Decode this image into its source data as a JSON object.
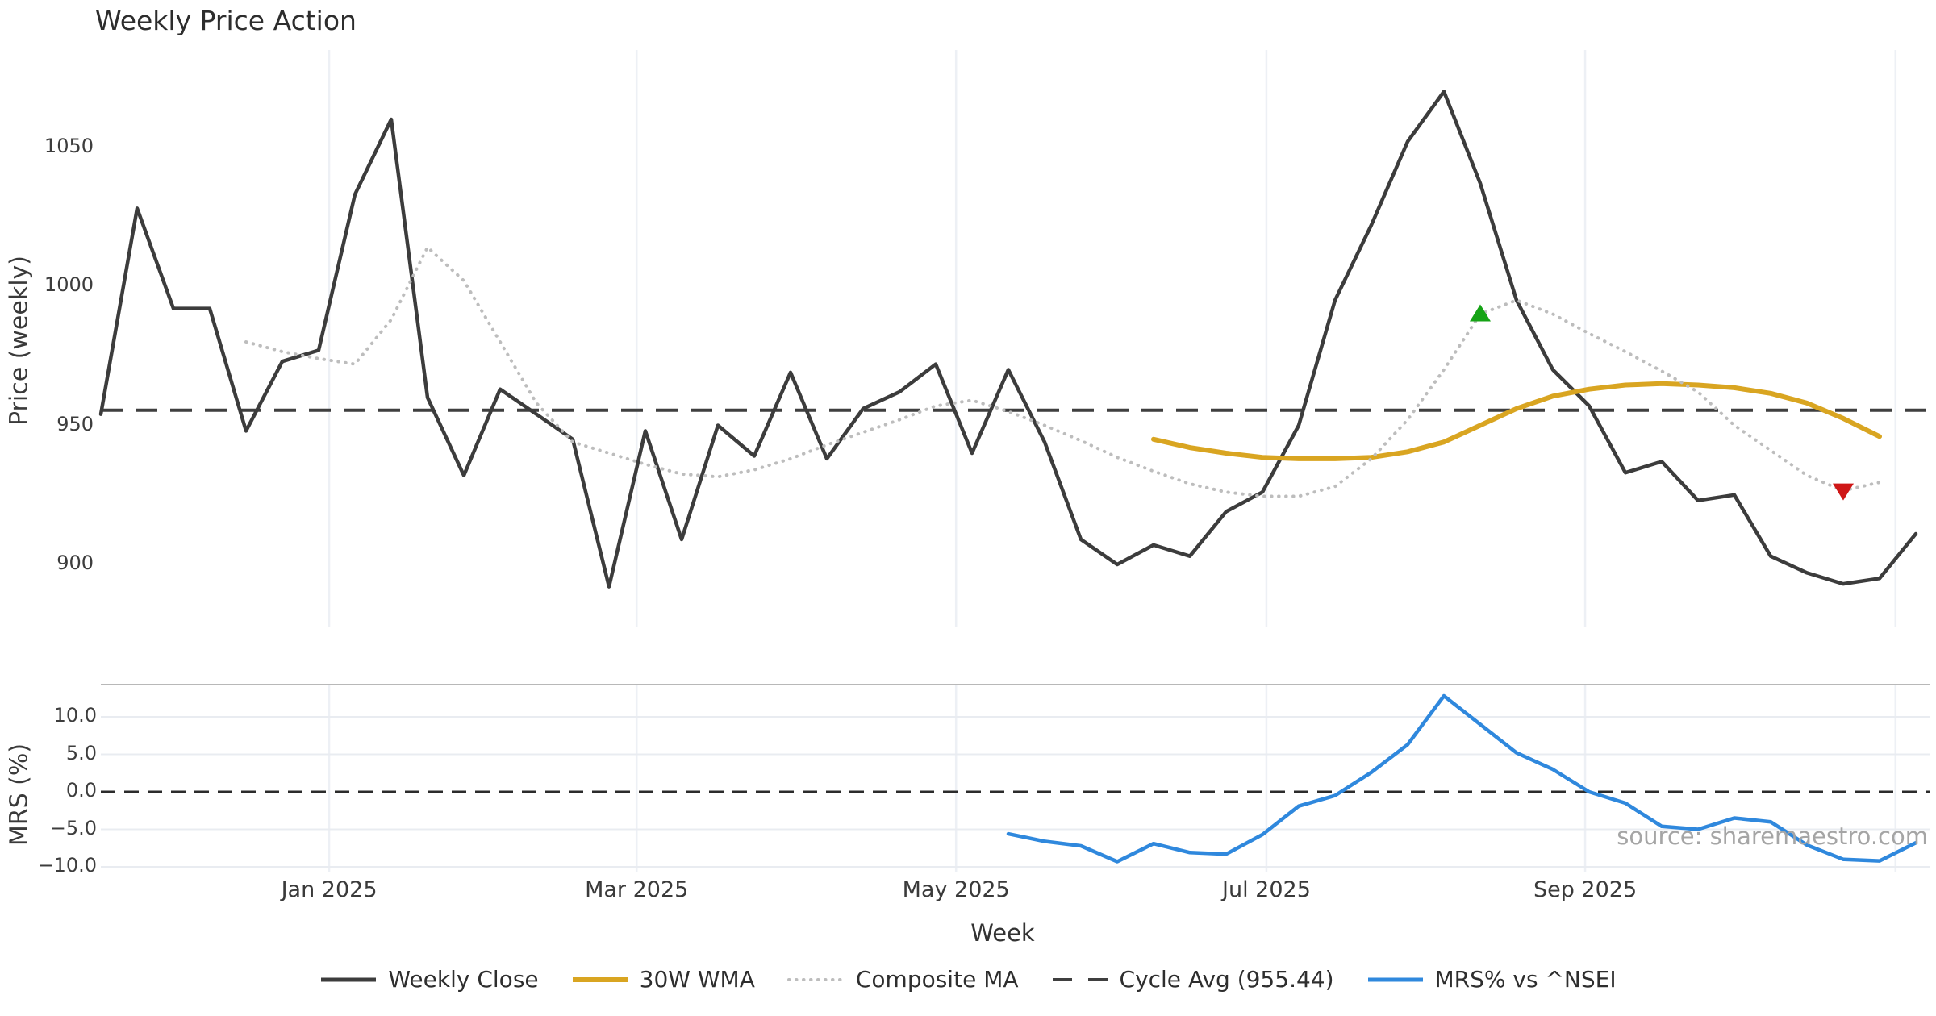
{
  "chart_data": {
    "type": "line",
    "title": "Weekly Price Action",
    "source_watermark": "source: sharemaestro.com",
    "x_unit": "week_index",
    "n_weeks": 51,
    "colors": {
      "weekly_close": "#3c3c3c",
      "wma": "#d9a521",
      "composite": "#bdbdbd",
      "cycle_avg": "#3f3f3f",
      "mrs": "#2f88dd",
      "zero_line": "#2b2b2b",
      "buy_marker": "#15a315",
      "sell_marker": "#cf1717",
      "grid_vertical": "#edf0f5",
      "grid_horizontal": "#e9ecf1",
      "spine": "#b8b8b8",
      "text": "#3a3a3a",
      "muted_text": "#a5a5a5"
    },
    "price_axis": {
      "label": "Price (weekly)",
      "tick_labels": [
        "1050",
        "1000",
        "950",
        "900"
      ],
      "tick_values": [
        1050,
        1000,
        950,
        900
      ],
      "ylim": [
        878,
        1085
      ]
    },
    "mrs_axis": {
      "label": "MRS (%)",
      "tick_labels": [
        "10.0",
        "5.0",
        "0.0",
        "−5.0",
        "−10.0"
      ],
      "tick_values": [
        10,
        5,
        0,
        -5,
        -10
      ],
      "ylim": [
        -10.7,
        14.3
      ],
      "zero_line": 0
    },
    "x_axis": {
      "label": "Week",
      "month_ticks": [
        {
          "label": "Jan 2025",
          "week": 6.29
        },
        {
          "label": "Mar 2025",
          "week": 14.76
        },
        {
          "label": "May 2025",
          "week": 23.56
        },
        {
          "label": "Jul 2025",
          "week": 32.11
        },
        {
          "label": "Sep 2025",
          "week": 40.89
        },
        {
          "label": "",
          "week": 49.44
        }
      ]
    },
    "cycle_avg": 955.44,
    "series": [
      {
        "name": "Weekly Close",
        "panel": "price",
        "style": "solid",
        "color_key": "weekly_close",
        "width": 4.5,
        "start": 0,
        "values": [
          954,
          1028,
          992,
          992,
          948,
          973,
          977,
          1033,
          1060,
          960,
          932,
          963,
          954,
          945,
          892,
          948,
          909,
          950,
          939,
          969,
          938,
          956,
          962,
          972,
          940,
          970,
          944,
          909,
          900,
          907,
          903,
          919,
          926,
          950,
          995,
          1022,
          1052,
          1070,
          1037,
          995,
          970,
          957,
          933,
          937,
          923,
          925,
          903,
          897,
          893,
          895,
          911
        ]
      },
      {
        "name": "30W WMA",
        "panel": "price",
        "style": "solid",
        "color_key": "wma",
        "width": 6,
        "start": 29,
        "values": [
          945,
          942,
          940,
          938.5,
          938,
          938,
          938.5,
          940.5,
          944,
          950,
          956,
          960.5,
          963,
          964.5,
          965,
          964.5,
          963.5,
          961.5,
          958,
          952.5,
          946
        ]
      },
      {
        "name": "Composite MA",
        "panel": "price",
        "style": "dotted",
        "color_key": "composite",
        "width": 4,
        "start": 4,
        "values": [
          980,
          976.5,
          974,
          972,
          988,
          1014,
          1002,
          980,
          958,
          944,
          940,
          936,
          932.5,
          931.5,
          934,
          938,
          943,
          947.5,
          952,
          957,
          959,
          955,
          950,
          944.5,
          938.5,
          933.5,
          929,
          926,
          924.5,
          924.5,
          928,
          938,
          952,
          970,
          990,
          995,
          990,
          983,
          976.5,
          969.5,
          962,
          950,
          941,
          932,
          926.5,
          929.5
        ]
      },
      {
        "name": "MRS% vs ^NSEI",
        "panel": "mrs",
        "style": "solid",
        "color_key": "mrs",
        "width": 4.5,
        "start": 25,
        "values": [
          -5.6,
          -6.6,
          -7.2,
          -9.3,
          -6.9,
          -8.1,
          -8.3,
          -5.7,
          -1.9,
          -0.5,
          2.6,
          6.3,
          12.8,
          9.0,
          5.2,
          3.0,
          0.0,
          -1.5,
          -4.6,
          -5.0,
          -3.5,
          -4.0,
          -7.1,
          -9.0,
          -9.2,
          -6.8
        ]
      }
    ],
    "markers": [
      {
        "type": "buy-triangle-up",
        "week": 38,
        "value": 990
      },
      {
        "type": "sell-triangle-down",
        "week": 48,
        "value": 926.5
      }
    ],
    "legend": [
      {
        "label": "Weekly Close",
        "swatch": "solid-dark"
      },
      {
        "label": "30W WMA",
        "swatch": "solid-gold"
      },
      {
        "label": "Composite MA",
        "swatch": "dotted-gray"
      },
      {
        "label": "Cycle Avg (955.44)",
        "swatch": "dashed-dark"
      },
      {
        "label": "MRS% vs ^NSEI",
        "swatch": "solid-blue"
      }
    ]
  }
}
